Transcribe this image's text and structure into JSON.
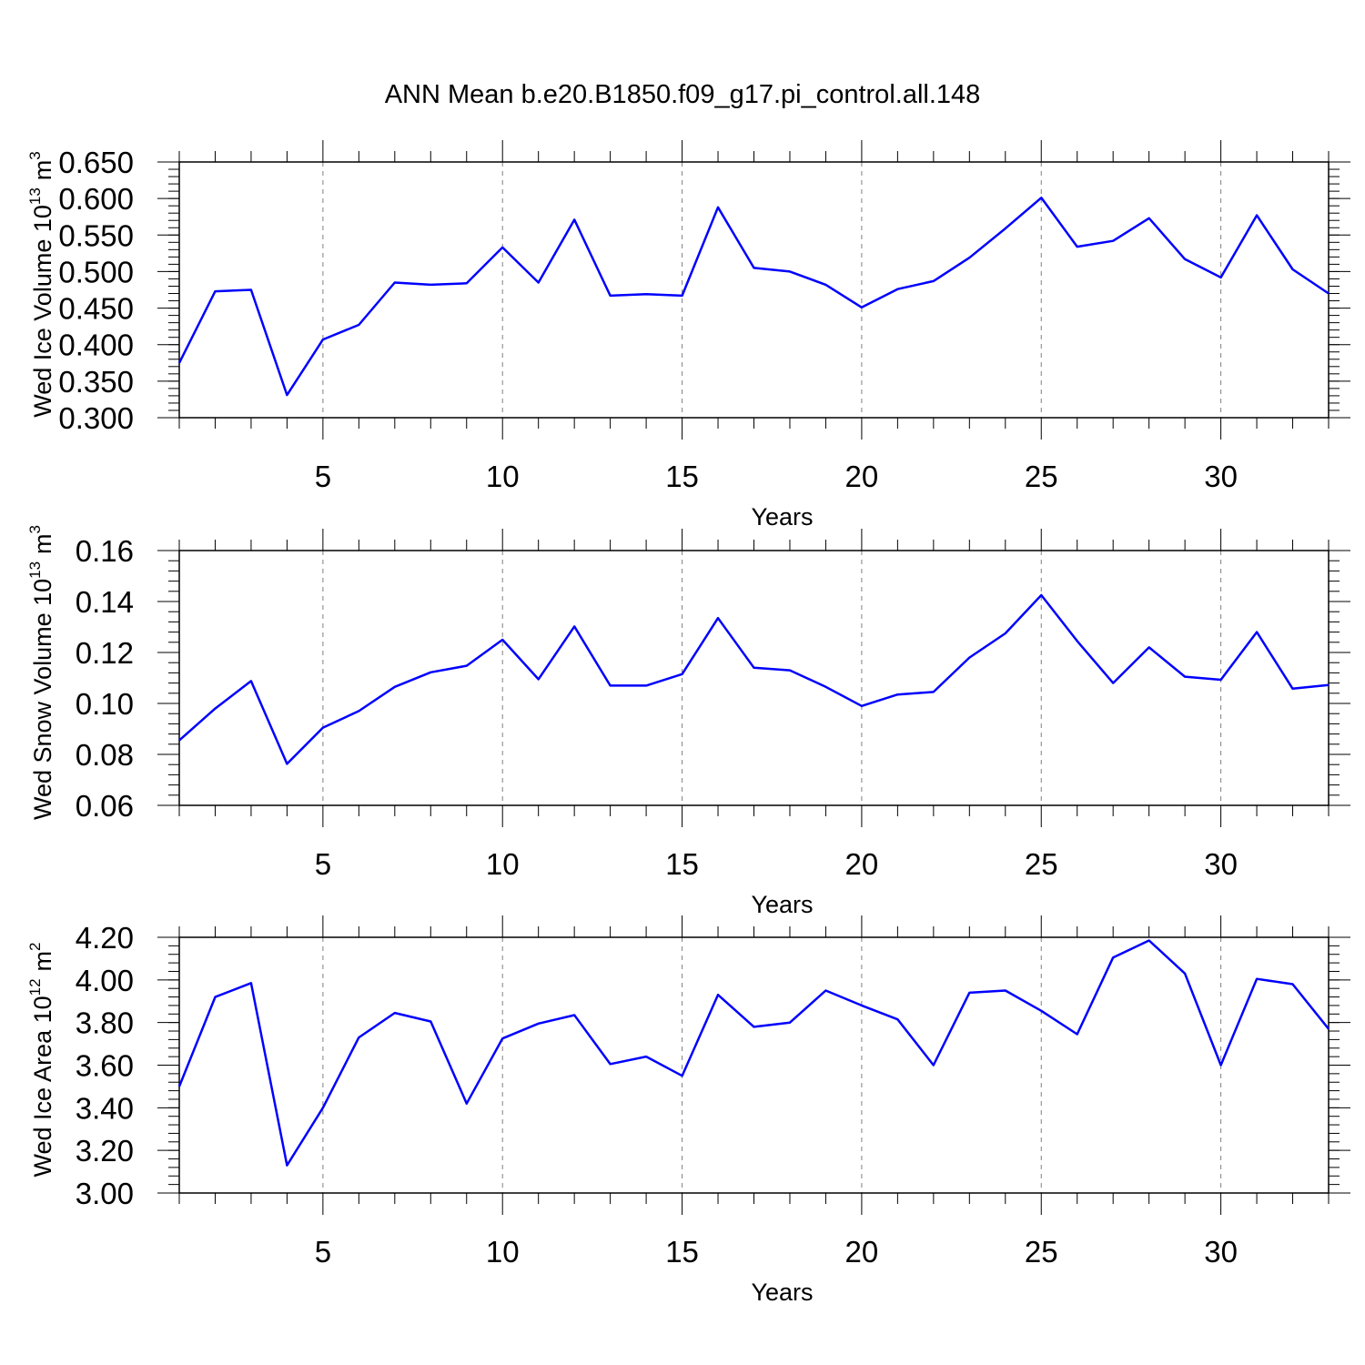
{
  "figure": {
    "title": "ANN Mean b.e20.B1850.f09_g17.pi_control.all.148",
    "line_color": "#0000ff",
    "grid_color": "#808080"
  },
  "chart_data": [
    {
      "type": "line",
      "xlabel": "Years",
      "ylabel": {
        "text": "Wed Ice Volume 10",
        "exp": "13",
        "unit": "m",
        "unit_exp": "3"
      },
      "xlim": [
        1,
        33
      ],
      "ylim": [
        0.3,
        0.65
      ],
      "y_ticks": [
        "0.300",
        "0.350",
        "0.400",
        "0.450",
        "0.500",
        "0.550",
        "0.600",
        "0.650"
      ],
      "y_tick_values": [
        0.3,
        0.35,
        0.4,
        0.45,
        0.5,
        0.55,
        0.6,
        0.65
      ],
      "y_minor_step": 0.01,
      "x_ticks": [
        5,
        10,
        15,
        20,
        25,
        30
      ],
      "grid": "vertical-dashed",
      "series": [
        {
          "x": [
            1,
            2,
            3,
            4,
            5,
            6,
            7,
            8,
            9,
            10,
            11,
            12,
            13,
            14,
            15,
            16,
            17,
            18,
            19,
            20,
            21,
            22,
            23,
            24,
            25,
            26,
            27,
            28,
            29,
            30,
            31,
            32,
            33
          ],
          "values": [
            0.375,
            0.473,
            0.475,
            0.331,
            0.407,
            0.427,
            0.485,
            0.482,
            0.484,
            0.533,
            0.485,
            0.571,
            0.467,
            0.469,
            0.467,
            0.588,
            0.505,
            0.5,
            0.482,
            0.451,
            0.476,
            0.487,
            0.519,
            0.559,
            0.601,
            0.534,
            0.542,
            0.573,
            0.517,
            0.492,
            0.577,
            0.503,
            0.47
          ]
        }
      ]
    },
    {
      "type": "line",
      "xlabel": "Years",
      "ylabel": {
        "text": "Wed Snow Volume 10",
        "exp": "13",
        "unit": "m",
        "unit_exp": "3"
      },
      "xlim": [
        1,
        33
      ],
      "ylim": [
        0.06,
        0.16
      ],
      "y_ticks": [
        "0.06",
        "0.08",
        "0.10",
        "0.12",
        "0.14",
        "0.16"
      ],
      "y_tick_values": [
        0.06,
        0.08,
        0.1,
        0.12,
        0.14,
        0.16
      ],
      "y_minor_step": 0.004,
      "x_ticks": [
        5,
        10,
        15,
        20,
        25,
        30
      ],
      "grid": "vertical-dashed",
      "series": [
        {
          "x": [
            1,
            2,
            3,
            4,
            5,
            6,
            7,
            8,
            9,
            10,
            11,
            12,
            13,
            14,
            15,
            16,
            17,
            18,
            19,
            20,
            21,
            22,
            23,
            24,
            25,
            26,
            27,
            28,
            29,
            30,
            31,
            32,
            33
          ],
          "values": [
            0.0855,
            0.098,
            0.1088,
            0.0763,
            0.0905,
            0.097,
            0.1065,
            0.1122,
            0.1148,
            0.125,
            0.1095,
            0.1302,
            0.107,
            0.107,
            0.1115,
            0.1335,
            0.114,
            0.113,
            0.1065,
            0.099,
            0.1035,
            0.1045,
            0.118,
            0.1275,
            0.1425,
            0.1245,
            0.108,
            0.122,
            0.1105,
            0.1093,
            0.128,
            0.1058,
            0.1072
          ]
        }
      ]
    },
    {
      "type": "line",
      "xlabel": "Years",
      "ylabel": {
        "text": "Wed Ice Area 10",
        "exp": "12",
        "unit": "m",
        "unit_exp": "2"
      },
      "xlim": [
        1,
        33
      ],
      "ylim": [
        3.0,
        4.2
      ],
      "y_ticks": [
        "3.00",
        "3.20",
        "3.40",
        "3.60",
        "3.80",
        "4.00",
        "4.20"
      ],
      "y_tick_values": [
        3.0,
        3.2,
        3.4,
        3.6,
        3.8,
        4.0,
        4.2
      ],
      "y_minor_step": 0.04,
      "x_ticks": [
        5,
        10,
        15,
        20,
        25,
        30
      ],
      "grid": "vertical-dashed",
      "series": [
        {
          "x": [
            1,
            2,
            3,
            4,
            5,
            6,
            7,
            8,
            9,
            10,
            11,
            12,
            13,
            14,
            15,
            16,
            17,
            18,
            19,
            20,
            21,
            22,
            23,
            24,
            25,
            26,
            27,
            28,
            29,
            30,
            31,
            32,
            33
          ],
          "values": [
            3.5,
            3.92,
            3.985,
            3.13,
            3.4,
            3.73,
            3.845,
            3.805,
            3.42,
            3.725,
            3.795,
            3.835,
            3.605,
            3.64,
            3.55,
            3.93,
            3.78,
            3.8,
            3.95,
            3.88,
            3.815,
            3.6,
            3.94,
            3.95,
            3.855,
            3.745,
            4.105,
            4.185,
            4.03,
            3.6,
            4.005,
            3.98,
            3.77
          ]
        }
      ]
    }
  ]
}
